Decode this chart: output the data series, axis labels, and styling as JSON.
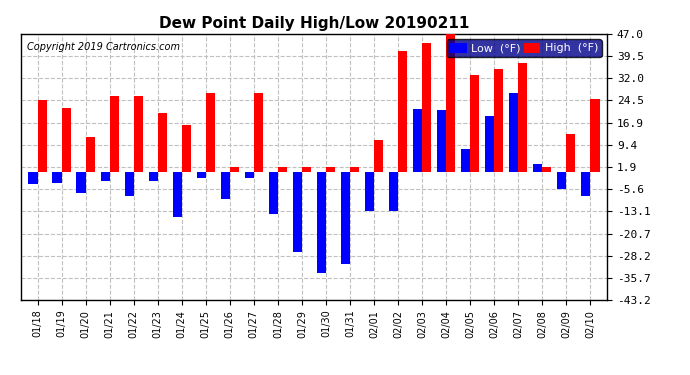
{
  "title": "Dew Point Daily High/Low 20190211",
  "copyright": "Copyright 2019 Cartronics.com",
  "dates": [
    "01/18",
    "01/19",
    "01/20",
    "01/21",
    "01/22",
    "01/23",
    "01/24",
    "01/25",
    "01/26",
    "01/27",
    "01/28",
    "01/29",
    "01/30",
    "01/31",
    "02/01",
    "02/02",
    "02/03",
    "02/04",
    "02/05",
    "02/06",
    "02/07",
    "02/08",
    "02/09",
    "02/10"
  ],
  "high": [
    24.5,
    22.0,
    12.0,
    26.0,
    26.0,
    20.0,
    16.0,
    27.0,
    1.9,
    27.0,
    1.9,
    1.9,
    1.9,
    1.9,
    11.0,
    41.0,
    44.0,
    47.0,
    33.0,
    35.0,
    37.0,
    1.9,
    13.0,
    25.0
  ],
  "low": [
    -4.0,
    -3.5,
    -7.0,
    -3.0,
    -8.0,
    -3.0,
    -15.0,
    -2.0,
    -9.0,
    -2.0,
    -14.0,
    -27.0,
    -34.0,
    -31.0,
    -13.0,
    -13.0,
    21.5,
    21.0,
    8.0,
    19.0,
    27.0,
    3.0,
    -5.5,
    -8.0
  ],
  "high_color": "#ff0000",
  "low_color": "#0000ff",
  "bg_color": "#ffffff",
  "plot_bg_color": "#ffffff",
  "grid_color": "#c0c0c0",
  "yticks": [
    47.0,
    39.5,
    32.0,
    24.5,
    16.9,
    9.4,
    1.9,
    -5.6,
    -13.1,
    -20.7,
    -28.2,
    -35.7,
    -43.2
  ],
  "ylim": [
    -43.2,
    47.0
  ],
  "bar_width": 0.38,
  "figsize": [
    6.9,
    3.75
  ],
  "dpi": 100
}
